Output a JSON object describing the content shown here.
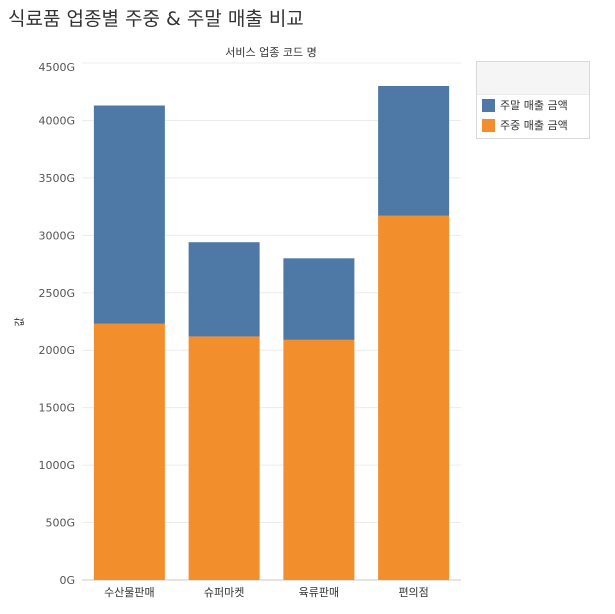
{
  "title": "식료품 업종별 주중 & 주말 매출 비교",
  "chart_data": {
    "type": "bar",
    "stacked": true,
    "header": "서비스 업종 코드 명",
    "ylabel": "값",
    "categories": [
      "수산물판매",
      "슈퍼마켓",
      "육류판매",
      "편의점"
    ],
    "series": [
      {
        "name": "주중 매출 금액",
        "color": "#f28e2b",
        "values": [
          2230,
          2120,
          2090,
          3170
        ]
      },
      {
        "name": "주말 매출 금액",
        "color": "#4e79a7",
        "values": [
          1900,
          820,
          710,
          1130
        ]
      }
    ],
    "ylim": [
      0,
      4500
    ],
    "yticks": [
      0,
      500,
      1000,
      1500,
      2000,
      2500,
      3000,
      3500,
      4000,
      4500
    ],
    "ytick_labels": [
      "0G",
      "500G",
      "1000G",
      "1500G",
      "2000G",
      "2500G",
      "3000G",
      "3500G",
      "4000G",
      "4500G"
    ],
    "grid": true,
    "legend_position": "top-right"
  },
  "legend": [
    {
      "label": "주말 매출 금액",
      "color": "#4e79a7"
    },
    {
      "label": "주중 매출 금액",
      "color": "#f28e2b"
    }
  ]
}
